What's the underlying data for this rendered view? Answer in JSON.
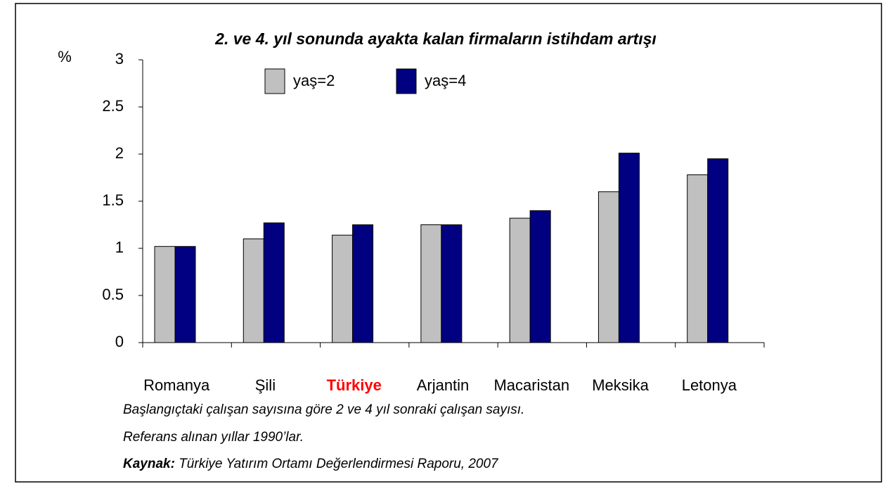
{
  "chart_data": {
    "type": "bar",
    "title": "2. ve 4. yıl sonunda ayakta kalan firmaların istihdam artışı",
    "y_label": "%",
    "categories": [
      "Romanya",
      "Şili",
      "Türkiye",
      "Arjantin",
      "Macaristan",
      "Meksika",
      "Letonya"
    ],
    "category_label_colors": [
      "#000000",
      "#000000",
      "#ff0000",
      "#000000",
      "#000000",
      "#000000",
      "#000000"
    ],
    "series": [
      {
        "name": "yaş=2",
        "color": "#c0c0c0",
        "values": [
          1.02,
          1.1,
          1.14,
          1.25,
          1.32,
          1.6,
          1.78
        ]
      },
      {
        "name": "yaş=4",
        "color": "#000080",
        "values": [
          1.02,
          1.27,
          1.25,
          1.25,
          1.4,
          2.01,
          1.95
        ]
      }
    ],
    "ylim": [
      0,
      3
    ],
    "yticks": [
      0,
      0.5,
      1,
      1.5,
      2,
      2.5,
      3
    ],
    "grid": false,
    "legend": "top",
    "notes": [
      "Başlangıçtaki çalışan sayısına göre 2 ve 4 yıl sonraki çalışan sayısı.",
      "Referans alınan yıllar 1990’lar."
    ],
    "source_label": "Kaynak:",
    "source": " Türkiye Yatırım Ortamı Değerlendirmesi Raporu, 2007"
  }
}
